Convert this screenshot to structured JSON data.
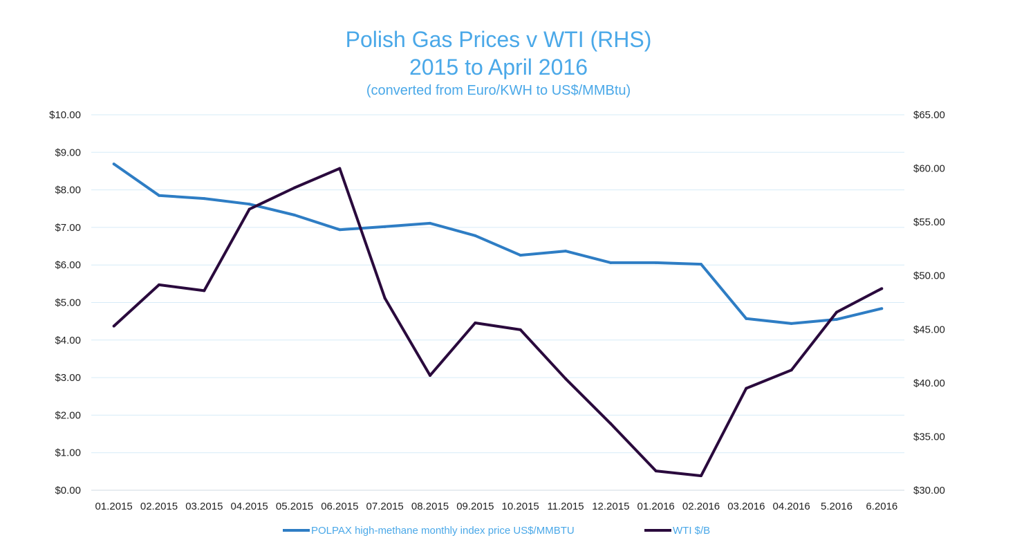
{
  "chart_data": {
    "type": "line",
    "title": "Polish Gas Prices v WTI (RHS)",
    "subtitle": "2015 to April 2016",
    "subtitle2": "(converted from Euro/KWH to US$/MMBtu)",
    "categories": [
      "01.2015",
      "02.2015",
      "03.2015",
      "04.2015",
      "05.2015",
      "06.2015",
      "07.2015",
      "08.2015",
      "09.2015",
      "10.2015",
      "11.2015",
      "12.2015",
      "01.2016",
      "02.2016",
      "03.2016",
      "04.2016",
      "5.2016",
      "6.2016"
    ],
    "left_axis": {
      "ylim": [
        0,
        10
      ],
      "step": 1,
      "ticks": [
        "$0.00",
        "$1.00",
        "$2.00",
        "$3.00",
        "$4.00",
        "$5.00",
        "$6.00",
        "$7.00",
        "$8.00",
        "$9.00",
        "$10.00"
      ]
    },
    "right_axis": {
      "ylim": [
        30,
        65
      ],
      "step": 5,
      "ticks": [
        "$30.00",
        "$35.00",
        "$40.00",
        "$45.00",
        "$50.00",
        "$55.00",
        "$60.00",
        "$65.00"
      ]
    },
    "grid": true,
    "legend_position": "bottom",
    "series": [
      {
        "name": "POLPAX high-methane monthly index price US$/MMBTU",
        "axis": "left",
        "color": "#2e7dc4",
        "values": [
          8.69,
          7.85,
          7.77,
          7.62,
          7.33,
          6.94,
          7.02,
          7.11,
          6.78,
          6.26,
          6.37,
          6.06,
          6.06,
          6.02,
          4.57,
          4.44,
          4.55,
          4.84
        ]
      },
      {
        "name": "WTI $/B",
        "axis": "right",
        "color": "#2a0a3d",
        "values": [
          45.3,
          49.15,
          48.6,
          56.2,
          58.2,
          60.0,
          47.9,
          40.7,
          45.6,
          44.96,
          40.4,
          36.2,
          31.8,
          31.35,
          39.5,
          41.2,
          46.6,
          48.8
        ]
      }
    ]
  }
}
